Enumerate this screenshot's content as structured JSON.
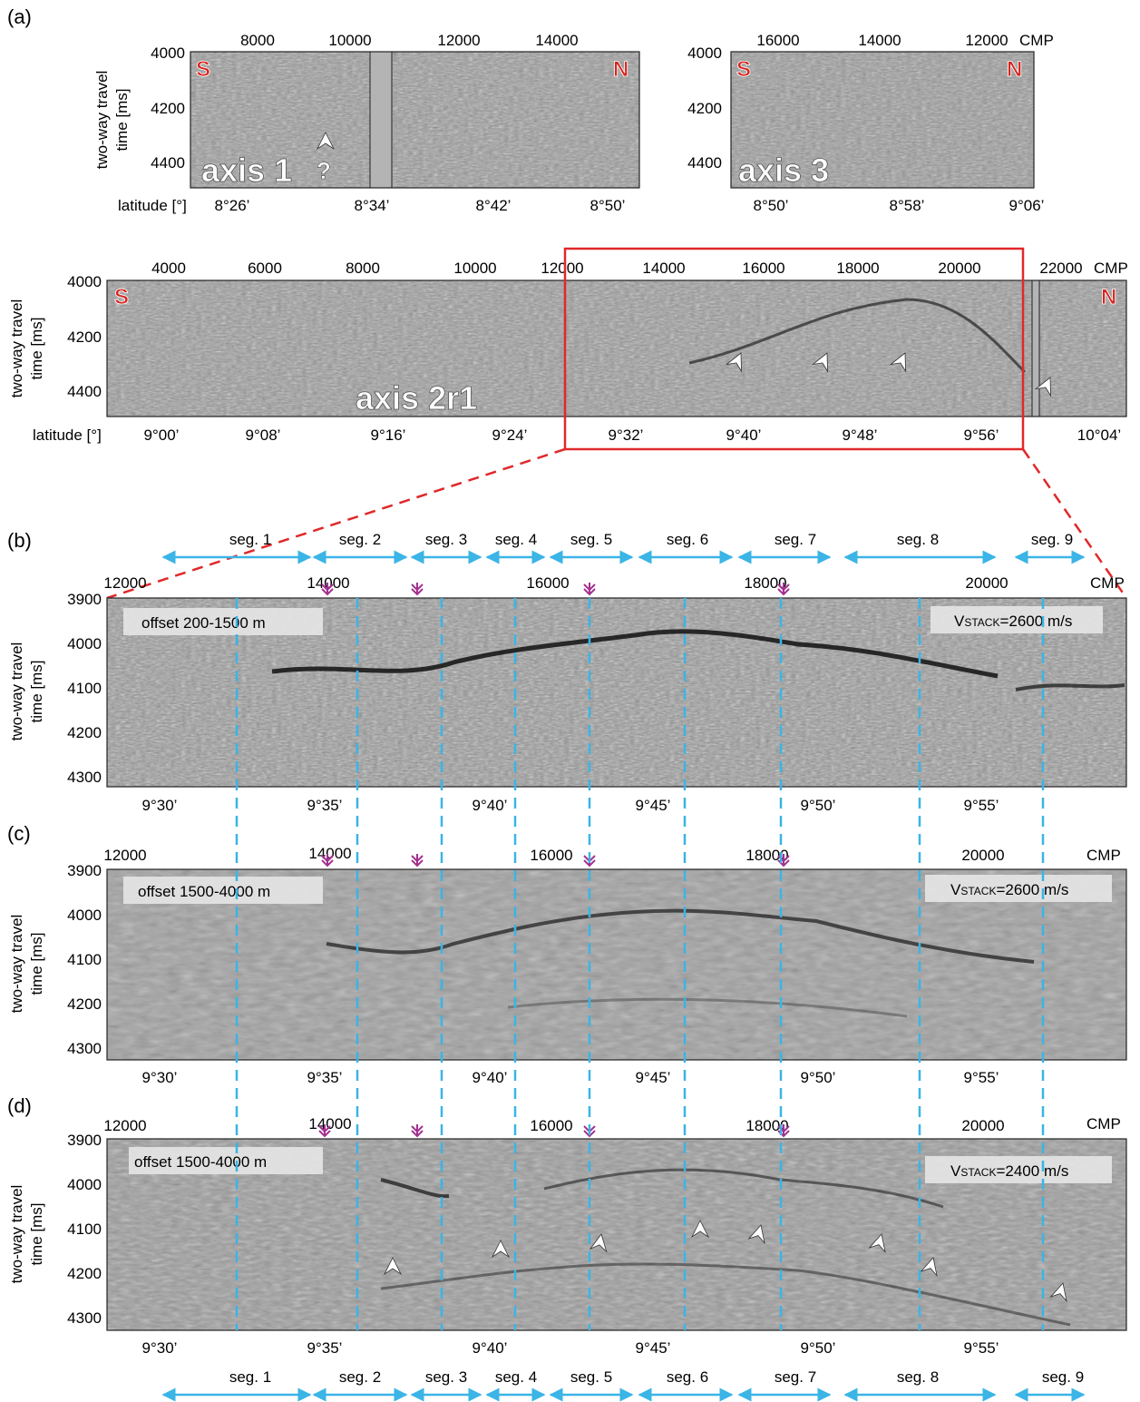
{
  "panel_letters": [
    "(a)",
    "(b)",
    "(c)",
    "(d)"
  ],
  "ylabel_lines": [
    "two-way travel",
    "time [ms]"
  ],
  "latitude_label": "latitude [°]",
  "cmp_label": "CMP",
  "south": "S",
  "north": "N",
  "question_mark": "?",
  "colors": {
    "seismic_bg": "#9a9a9a",
    "gap_fill": "#b4b4b4",
    "zoom_box": "#e0282a",
    "segment_lines": "#3bb4e6",
    "section_marks": "#a3308f",
    "sn_letters": "#d7251f"
  },
  "axis1": {
    "name": "axis 1",
    "cmp_ticks": [
      "8000",
      "10000",
      "12000",
      "14000"
    ],
    "twt_ticks": [
      "4000",
      "4200",
      "4400"
    ],
    "lat_ticks": [
      "8°26’",
      "8°34’",
      "8°42’",
      "8°50’"
    ]
  },
  "axis3": {
    "name": "axis 3",
    "cmp_ticks": [
      "16000",
      "14000",
      "12000"
    ],
    "twt_ticks": [
      "4000",
      "4200",
      "4400"
    ],
    "lat_ticks": [
      "8°50’",
      "8°58’",
      "9°06’"
    ]
  },
  "axis2": {
    "name": "axis 2r1",
    "cmp_ticks": [
      "4000",
      "6000",
      "8000",
      "10000",
      "12000",
      "14000",
      "16000",
      "18000",
      "20000",
      "22000"
    ],
    "twt_ticks": [
      "4000",
      "4200",
      "4400"
    ],
    "lat_ticks": [
      "9°00’",
      "9°08’",
      "9°16’",
      "9°24’",
      "9°32’",
      "9°40’",
      "9°48’",
      "9°56’",
      "10°04’"
    ]
  },
  "segments": [
    "seg. 1",
    "seg. 2",
    "seg. 3",
    "seg. 4",
    "seg. 5",
    "seg. 6",
    "seg. 7",
    "seg. 8",
    "seg. 9"
  ],
  "zoom_cmp_ticks": [
    "12000",
    "14000",
    "16000",
    "18000",
    "20000"
  ],
  "zoom_twt_ticks": [
    "3900",
    "4000",
    "4100",
    "4200",
    "4300"
  ],
  "zoom_lat_ticks": [
    "9°30’",
    "9°35’",
    "9°40’",
    "9°45’",
    "9°50’",
    "9°55’"
  ],
  "panel_b": {
    "offset": "offset 200-1500 m",
    "v_label": "V",
    "v_sub": "STACK",
    "v_value": "=2600 m/s"
  },
  "panel_c": {
    "offset": "offset 1500-4000 m",
    "v_label": "V",
    "v_sub": "STACK",
    "v_value": "=2600 m/s"
  },
  "panel_d": {
    "offset": "offset 1500-4000 m",
    "v_label": "V",
    "v_sub": "STACK",
    "v_value": "=2400 m/s"
  }
}
